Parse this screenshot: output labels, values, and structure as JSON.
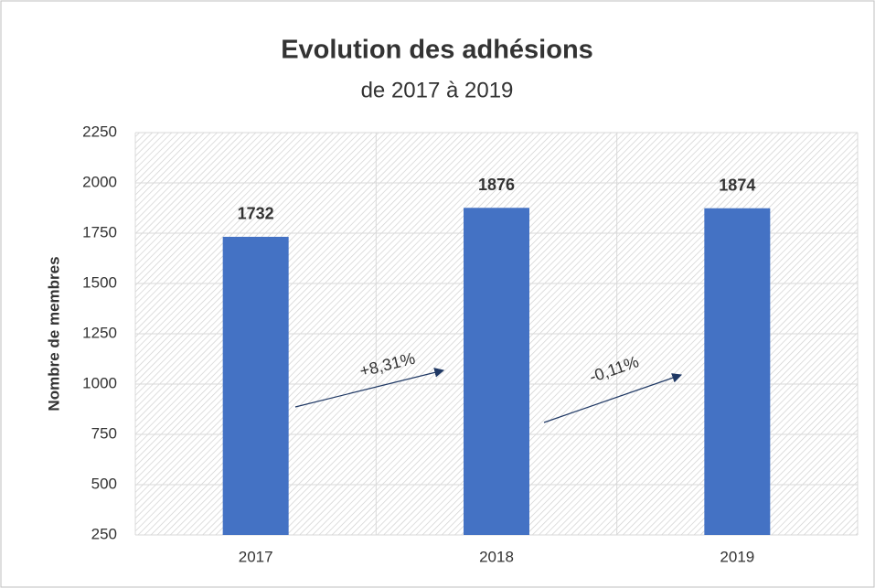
{
  "chart_data": {
    "type": "bar",
    "title": "Evolution des adhésions",
    "subtitle": "de 2017 à 2019",
    "y_label": "Nombre de membres",
    "categories": [
      "2017",
      "2018",
      "2019"
    ],
    "values": [
      1732,
      1876,
      1874
    ],
    "color": "#4472c4",
    "ylim": [
      250,
      2250
    ],
    "yticks": [
      250,
      500,
      750,
      1000,
      1250,
      1500,
      1750,
      2000,
      2250
    ],
    "grid": true,
    "annotations": [
      {
        "text": "+8,31%"
      },
      {
        "text": "-0,11%"
      }
    ]
  }
}
